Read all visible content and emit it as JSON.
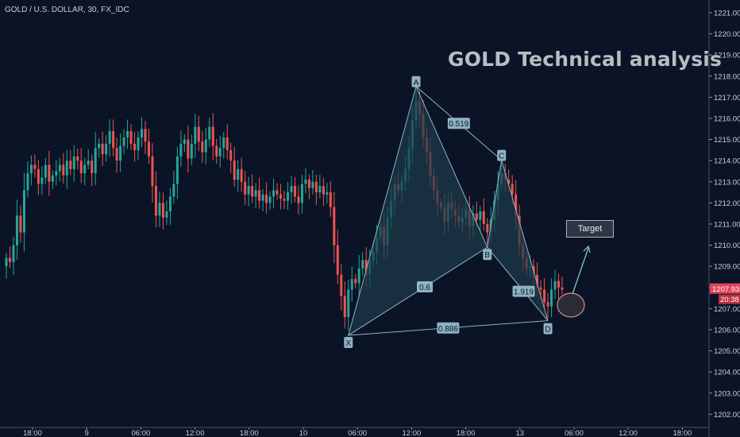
{
  "header": {
    "symbol_title": "GOLD / U.S. DOLLAR, 30, FX_IDC",
    "headline": "GOLD Technical analysis"
  },
  "annotations": {
    "target_label": "Target",
    "points": [
      "X",
      "A",
      "B",
      "C",
      "D"
    ],
    "ratios": {
      "xab": "0.6",
      "abc": "0.519",
      "bcd": "1.919",
      "xad": "0.886"
    }
  },
  "price_tags": {
    "last_price": "1207.93",
    "countdown": "20:38"
  },
  "colors": {
    "background": "#0b1426",
    "bull": "#26a69a",
    "bear": "#ef5350",
    "pattern_fill": "#1d3a48",
    "pattern_line": "#8fb3c0",
    "label_bg": "#8fb3c0",
    "price_tag": "#e0455a"
  },
  "chart_data": {
    "type": "candlestick",
    "title": "GOLD Technical analysis",
    "x_tick_labels": [
      "18:00",
      "9",
      "06:00",
      "12:00",
      "18:00",
      "10",
      "06:00",
      "12:00",
      "18:00",
      "13",
      "06:00",
      "12:00",
      "18:00"
    ],
    "y_tick_labels": [
      "1221.00",
      "1220.00",
      "1219.00",
      "1218.00",
      "1217.00",
      "1216.00",
      "1215.00",
      "1214.00",
      "1213.00",
      "1212.00",
      "1211.00",
      "1210.00",
      "1209.00",
      "1208.00",
      "1207.00",
      "1206.00",
      "1205.00",
      "1204.00",
      "1203.00",
      "1202.00"
    ],
    "ylim": [
      1201.6,
      1221.3
    ],
    "grid": false,
    "legend": "none",
    "candle_closes": [
      1209.4,
      1209.2,
      1210.0,
      1211.4,
      1210.6,
      1212.6,
      1213.4,
      1213.8,
      1213.6,
      1212.9,
      1213.2,
      1213.8,
      1213.0,
      1213.3,
      1213.5,
      1213.8,
      1213.3,
      1214.0,
      1213.6,
      1214.2,
      1214.0,
      1213.4,
      1213.8,
      1214.0,
      1213.4,
      1214.6,
      1214.8,
      1214.3,
      1214.8,
      1215.4,
      1214.6,
      1214.0,
      1214.7,
      1215.1,
      1215.4,
      1214.8,
      1214.5,
      1215.1,
      1215.5,
      1214.9,
      1214.2,
      1212.8,
      1211.4,
      1212.0,
      1211.3,
      1211.6,
      1212.3,
      1212.9,
      1214.2,
      1214.8,
      1215.0,
      1214.1,
      1214.8,
      1215.6,
      1214.9,
      1214.4,
      1215.0,
      1215.6,
      1214.7,
      1214.2,
      1214.6,
      1215.1,
      1214.5,
      1214.0,
      1213.1,
      1213.6,
      1213.0,
      1212.4,
      1212.8,
      1212.3,
      1212.6,
      1212.1,
      1212.4,
      1212.0,
      1212.3,
      1212.6,
      1212.4,
      1212.2,
      1212.1,
      1212.5,
      1212.8,
      1212.3,
      1212.0,
      1212.9,
      1213.1,
      1212.7,
      1213.0,
      1212.5,
      1212.8,
      1212.4,
      1212.5,
      1211.8,
      1210.0,
      1208.6,
      1207.6,
      1206.6,
      1207.9,
      1208.4,
      1208.2,
      1208.9,
      1209.3,
      1208.6,
      1209.3,
      1209.7,
      1210.4,
      1210.9,
      1210.0,
      1211.3,
      1212.1,
      1212.9,
      1212.6,
      1213.0,
      1213.6,
      1214.6,
      1215.9,
      1216.8,
      1216.2,
      1215.1,
      1214.4,
      1213.3,
      1212.6,
      1212.0,
      1211.8,
      1211.1,
      1212.0,
      1211.7,
      1211.4,
      1211.1,
      1211.3,
      1211.7,
      1210.9,
      1211.5,
      1211.2,
      1211.6,
      1211.0,
      1210.6,
      1211.2,
      1212.1,
      1212.9,
      1213.4,
      1213.1,
      1212.9,
      1212.4,
      1211.4,
      1210.0,
      1209.4,
      1208.9,
      1209.0,
      1208.6,
      1208.0,
      1207.9,
      1207.3,
      1207.1,
      1207.9,
      1208.3,
      1208.0,
      1207.9
    ]
  }
}
